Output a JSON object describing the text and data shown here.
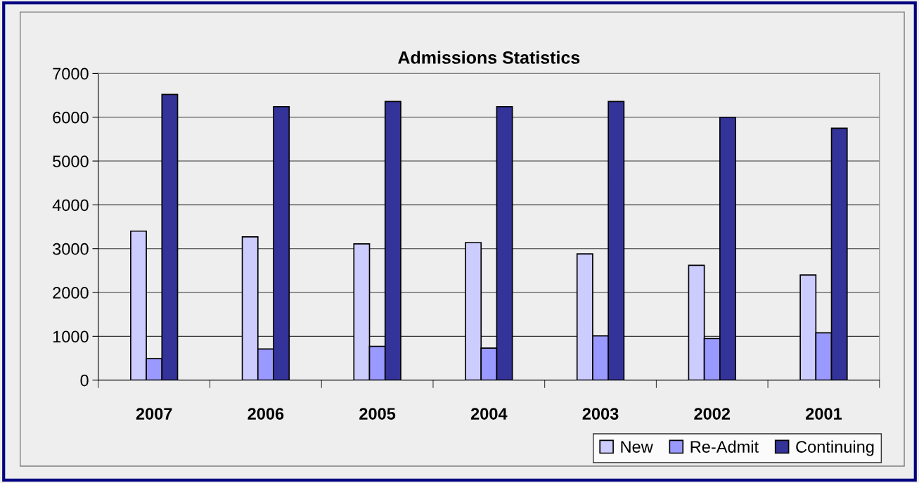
{
  "chart_data": {
    "type": "bar",
    "title": "Admissions Statistics",
    "categories": [
      "2007",
      "2006",
      "2005",
      "2004",
      "2003",
      "2002",
      "2001"
    ],
    "series": [
      {
        "name": "New",
        "color": "#ccccff",
        "values": [
          3400,
          3270,
          3110,
          3140,
          2880,
          2620,
          2400
        ]
      },
      {
        "name": "Re-Admit",
        "color": "#9999ff",
        "values": [
          490,
          710,
          770,
          730,
          1010,
          950,
          1080
        ]
      },
      {
        "name": "Continuing",
        "color": "#333399",
        "values": [
          6520,
          6240,
          6360,
          6240,
          6360,
          6000,
          5750
        ]
      }
    ],
    "ylim": [
      0,
      7000
    ],
    "yticks": [
      0,
      1000,
      2000,
      3000,
      4000,
      5000,
      6000,
      7000
    ],
    "grid": "y",
    "legend": "bottom right"
  }
}
